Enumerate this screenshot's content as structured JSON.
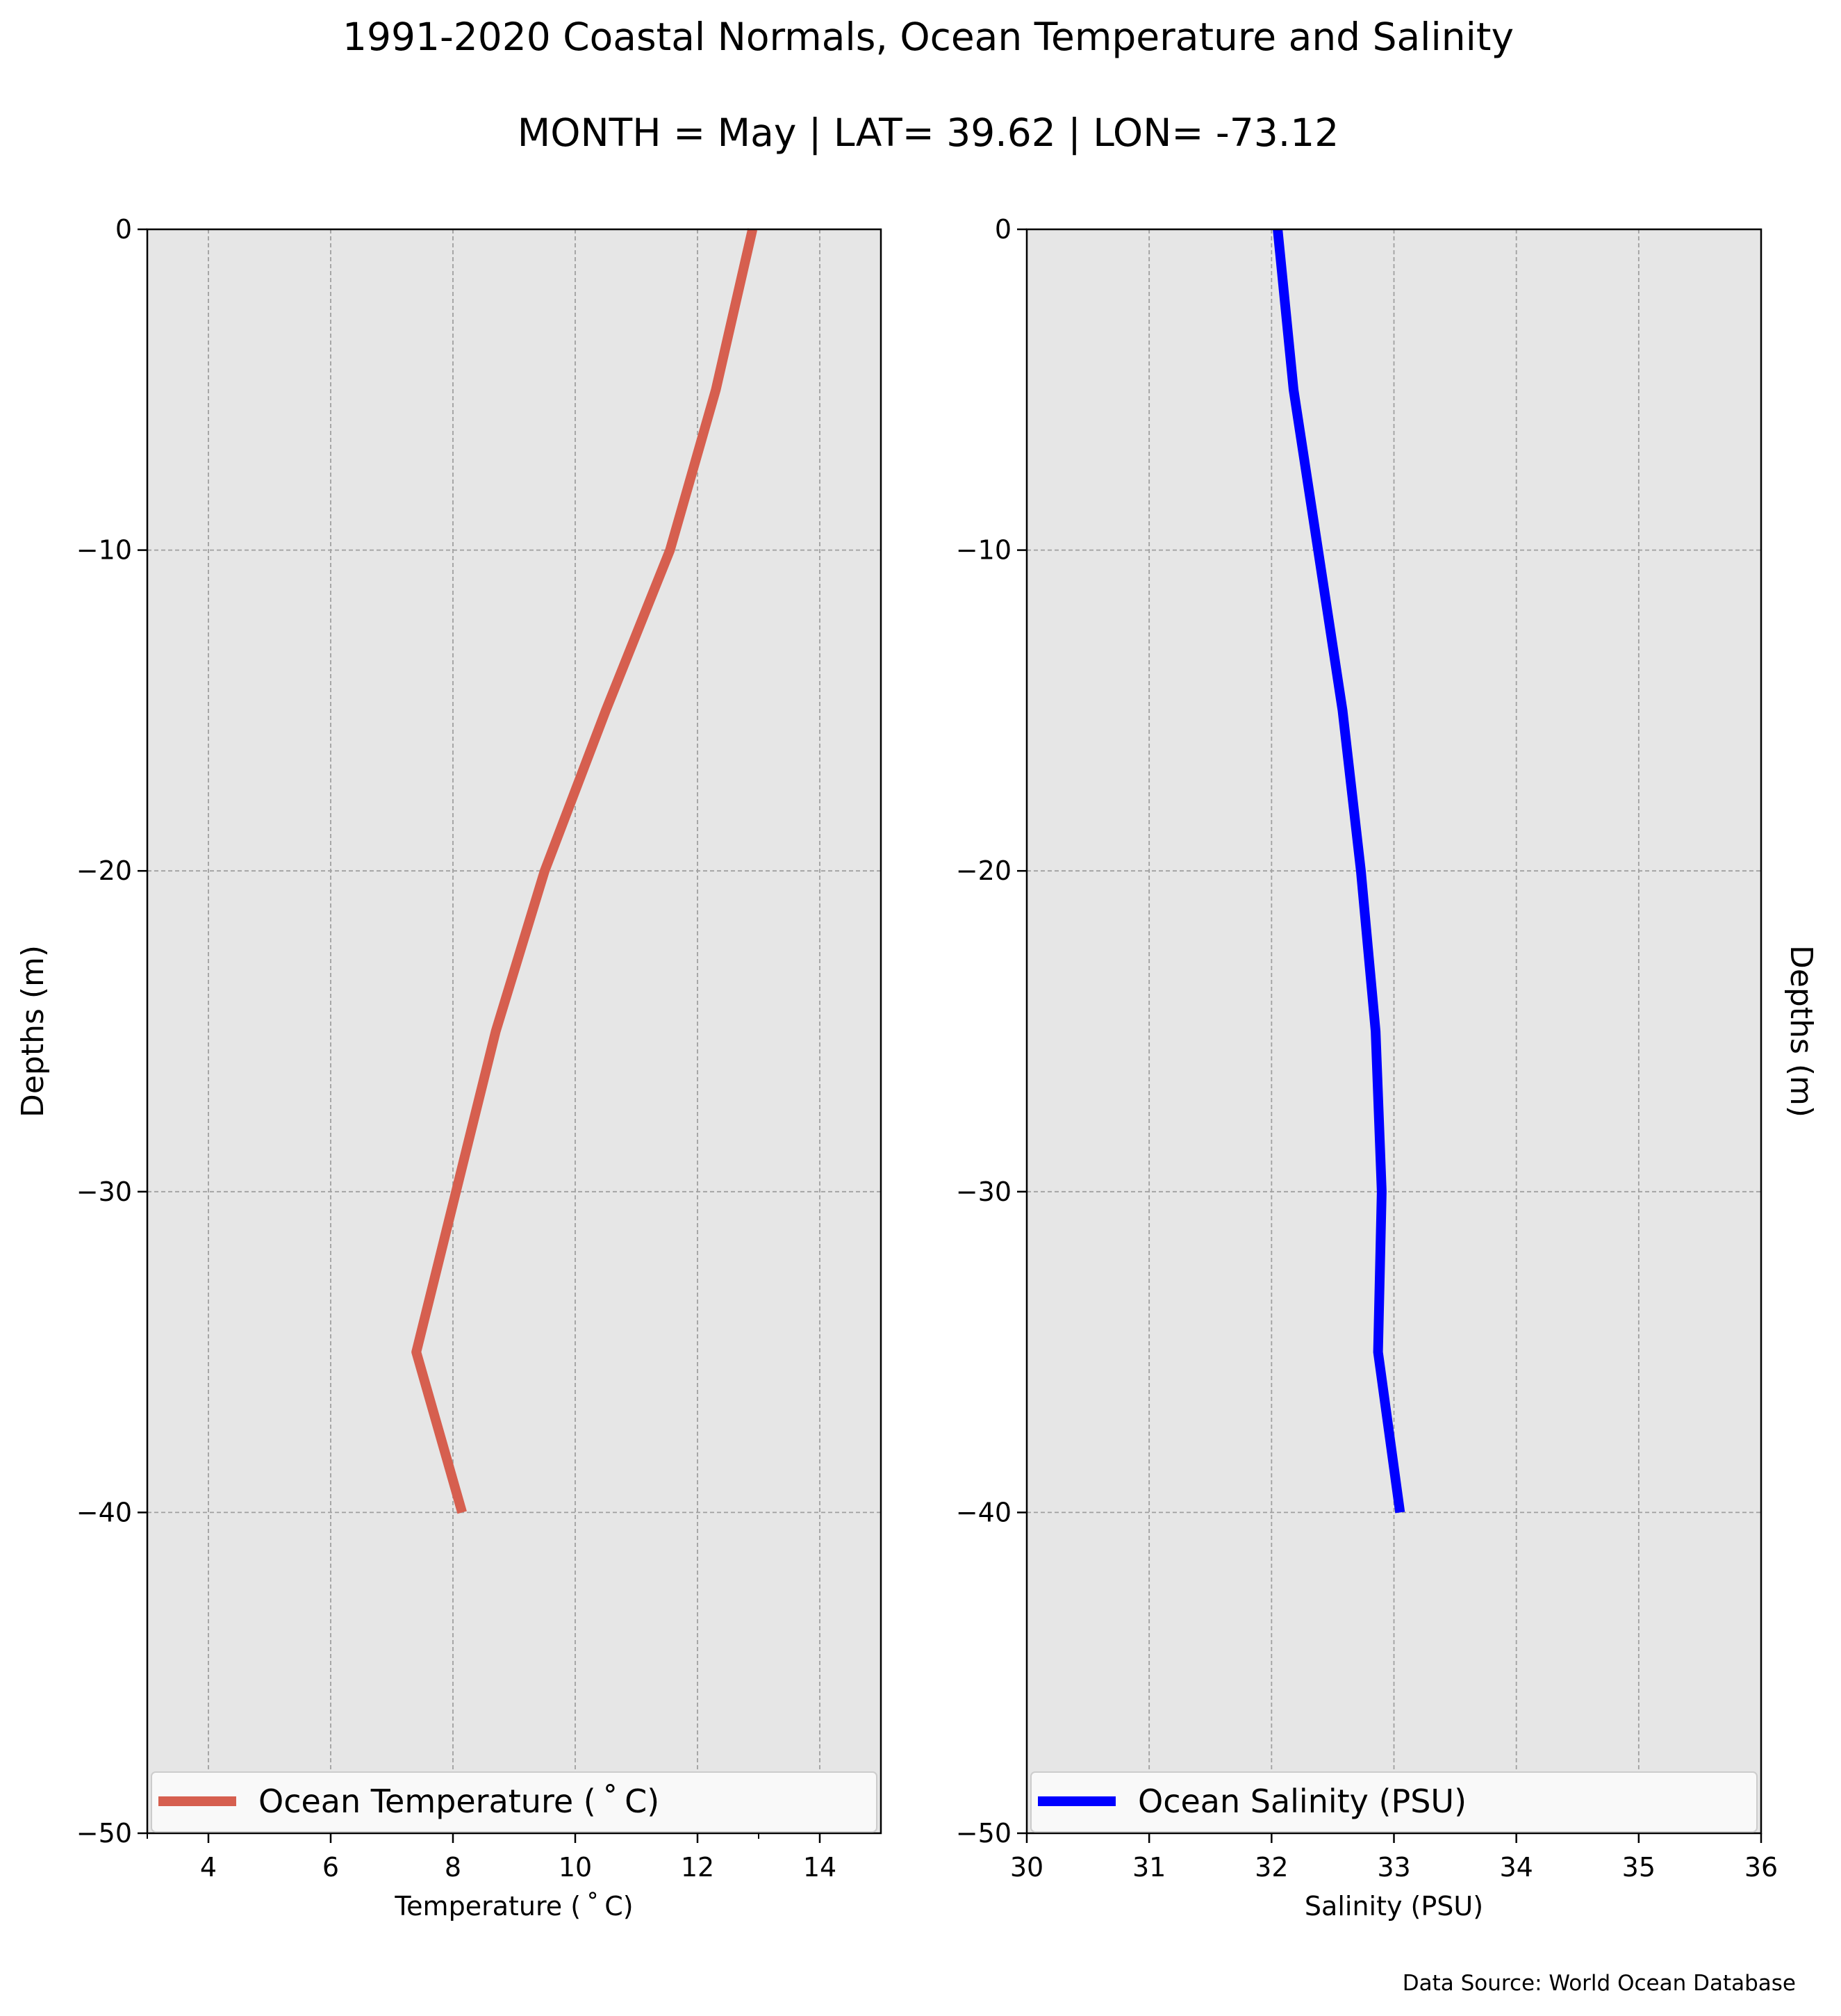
{
  "title": "1991-2020 Coastal Normals, Ocean Temperature and Salinity",
  "subtitle": "MONTH = May | LAT= 39.62 | LON= -73.12",
  "footer": "Data Source: World Ocean Database",
  "colors": {
    "plot_background": "#e6e6e6",
    "grid": "#a0a0a0",
    "temperature_line": "#d65f4f",
    "salinity_line": "#0000ff"
  },
  "chart_data": [
    {
      "type": "line",
      "xlabel": "Temperature ($^\\circ$C)",
      "xlabel_display": "Temperature ( ˚ C)",
      "ylabel": "Depths (m)",
      "xlim": [
        3,
        15
      ],
      "ylim": [
        -50,
        0
      ],
      "xticks": [
        4,
        6,
        8,
        10,
        12,
        14
      ],
      "xtick_labels": [
        "4",
        "6",
        "8",
        "10",
        "12",
        "14"
      ],
      "yticks": [
        0,
        -10,
        -20,
        -30,
        -40,
        -50
      ],
      "ytick_labels": [
        "0",
        "−10",
        "−20",
        "−30",
        "−40",
        "−50"
      ],
      "grid": true,
      "legend_position": "bottom",
      "series": [
        {
          "name": "Ocean Temperature ( ˚ C)",
          "color": "#d65f4f",
          "x": [
            12.9,
            12.3,
            11.55,
            10.5,
            9.5,
            8.7,
            8.05,
            7.4,
            8.15
          ],
          "y": [
            0,
            -5,
            -10,
            -15,
            -20,
            -25,
            -30,
            -35,
            -40
          ]
        }
      ]
    },
    {
      "type": "line",
      "xlabel": "Salinity (PSU)",
      "ylabel": "Depths (m)",
      "xlim": [
        30,
        36
      ],
      "ylim": [
        -50,
        0
      ],
      "xticks": [
        30,
        31,
        32,
        33,
        34,
        35,
        36
      ],
      "xtick_labels": [
        "30",
        "31",
        "32",
        "33",
        "34",
        "35",
        "36"
      ],
      "yticks": [
        0,
        -10,
        -20,
        -30,
        -40,
        -50
      ],
      "ytick_labels": [
        "0",
        "−10",
        "−20",
        "−30",
        "−40",
        "−50"
      ],
      "grid": true,
      "legend_position": "bottom",
      "series": [
        {
          "name": "Ocean Salinity (PSU)",
          "color": "#0000ff",
          "x": [
            32.05,
            32.18,
            32.38,
            32.58,
            32.73,
            32.85,
            32.9,
            32.87,
            33.05
          ],
          "y": [
            0,
            -5,
            -10,
            -15,
            -20,
            -25,
            -30,
            -35,
            -40
          ]
        }
      ]
    }
  ]
}
